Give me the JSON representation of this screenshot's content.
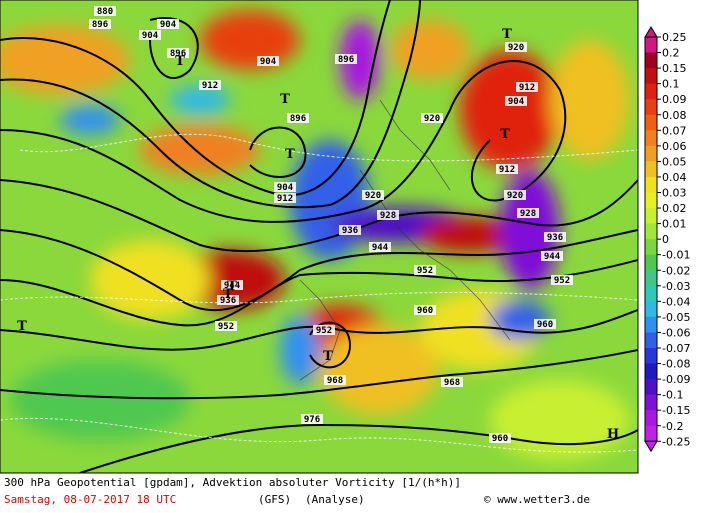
{
  "map": {
    "caption": "300 hPa Geopotential [gpdam], Advektion absoluter Vorticity [1/(h*h)]",
    "date": "Samstag, 08-07-2017  18 UTC",
    "model": "(GFS)",
    "run": "(Analyse)",
    "credit": "© www.wetter3.de",
    "colorbar": {
      "ticks": [
        0.25,
        0.2,
        0.15,
        0.1,
        0.09,
        0.08,
        0.07,
        0.06,
        0.05,
        0.04,
        0.03,
        0.02,
        0.01,
        0,
        -0.01,
        -0.02,
        -0.03,
        -0.04,
        -0.05,
        -0.06,
        -0.07,
        -0.08,
        -0.09,
        -0.1,
        -0.15,
        -0.2,
        -0.25
      ],
      "colors": [
        "#d01880",
        "#a00020",
        "#c01010",
        "#e02010",
        "#e84010",
        "#f06010",
        "#f08020",
        "#f0a020",
        "#f0c020",
        "#f0e020",
        "#e8f020",
        "#c8f030",
        "#a0e838",
        "#78d840",
        "#50c850",
        "#40c888",
        "#30c8b8",
        "#30b8e8",
        "#3090f0",
        "#3060e8",
        "#2838d8",
        "#2018c0",
        "#5010c8",
        "#8010d8",
        "#a818e0",
        "#c020e8"
      ]
    },
    "contour_labels": [
      "880",
      "896",
      "904",
      "896",
      "904",
      "912",
      "904",
      "896",
      "904",
      "912",
      "896",
      "920",
      "920",
      "912",
      "904",
      "912",
      "920",
      "928",
      "936",
      "944",
      "928",
      "920",
      "936",
      "944",
      "952",
      "952",
      "944",
      "936",
      "952",
      "960",
      "960",
      "968",
      "968",
      "976",
      "960",
      "952"
    ],
    "markers": [
      "T",
      "T",
      "T",
      "T",
      "T",
      "T",
      "T",
      "T",
      "T",
      "H"
    ]
  }
}
